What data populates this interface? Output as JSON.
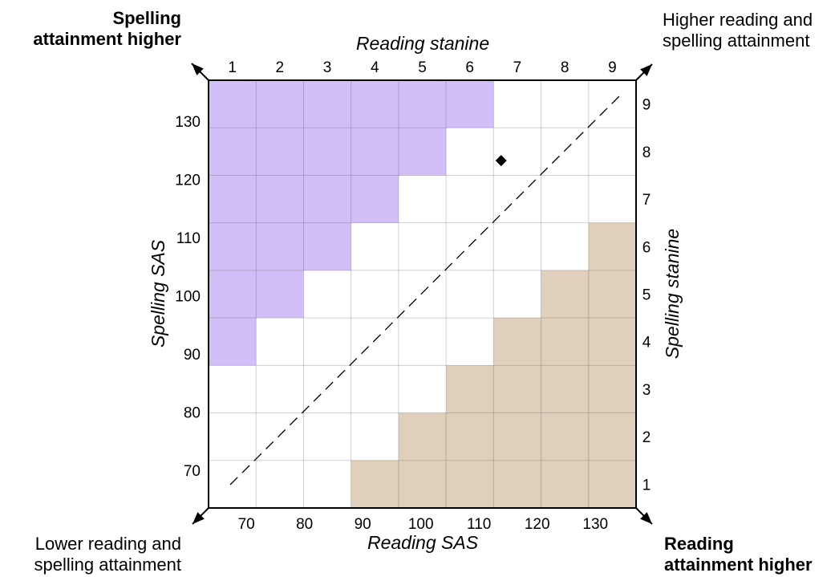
{
  "corners": {
    "top_left": [
      "Spelling",
      "attainment higher"
    ],
    "top_right": [
      "Higher reading and",
      "spelling attainment"
    ],
    "bottom_left": [
      "Lower reading and",
      "spelling attainment"
    ],
    "bottom_right": [
      "Reading",
      "attainment higher"
    ]
  },
  "chart_data": {
    "type": "scatter",
    "title": "",
    "grid": true,
    "x_top_label": "Reading stanine",
    "x_bottom_label": "Reading SAS",
    "y_left_label": "Spelling SAS",
    "y_right_label": "Spelling stanine",
    "stanines": [
      "1",
      "2",
      "3",
      "4",
      "5",
      "6",
      "7",
      "8",
      "9"
    ],
    "sas_ticks": [
      70,
      80,
      90,
      100,
      110,
      120,
      130
    ],
    "sas_range": [
      63.5,
      137
    ],
    "spelling_higher_region": {
      "color": "#d3bff8",
      "cells_per_stanine_row": [
        6,
        5,
        4,
        3,
        2,
        1,
        0,
        0,
        0
      ]
    },
    "reading_higher_region": {
      "color": "#e0d0bb",
      "cells_per_stanine_row": [
        6,
        5,
        4,
        3,
        2,
        1,
        0,
        0,
        0
      ]
    },
    "diagonal": "dashed",
    "points": [
      {
        "reading_sas": 113.8,
        "spelling_sas": 123.2,
        "marker": "diamond"
      }
    ]
  }
}
